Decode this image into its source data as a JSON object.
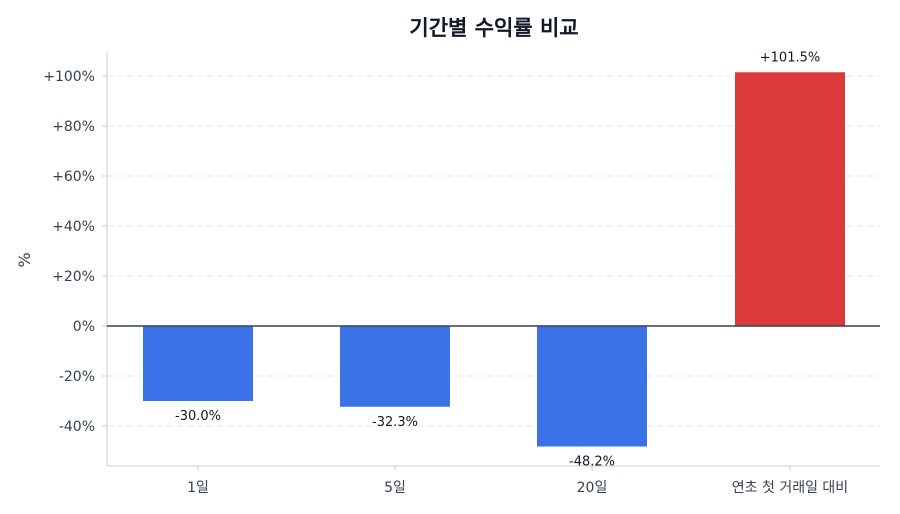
{
  "chart_data": {
    "type": "bar",
    "title": "기간별 수익률 비교",
    "xlabel": "",
    "ylabel": "%",
    "categories": [
      "1일",
      "5일",
      "20일",
      "연초 첫 거래일 대비"
    ],
    "values": [
      -30.0,
      -32.3,
      -48.2,
      101.5
    ],
    "value_labels": [
      "-30.0%",
      "-32.3%",
      "-48.2%",
      "+101.5%"
    ],
    "ylim": [
      -56,
      110
    ],
    "yticks": [
      100,
      80,
      60,
      40,
      20,
      0,
      -20,
      -40
    ],
    "ytick_labels": [
      "+100%",
      "+80%",
      "+60%",
      "+40%",
      "+20%",
      "0%",
      "-20%",
      "-40%"
    ],
    "grid": true,
    "legend": "none",
    "colors": {
      "positive": "#dc3a3a",
      "negative": "#3b72e8",
      "zero_line": "#374151",
      "grid": "#e5e7eb",
      "axis": "#c9ced6"
    }
  }
}
